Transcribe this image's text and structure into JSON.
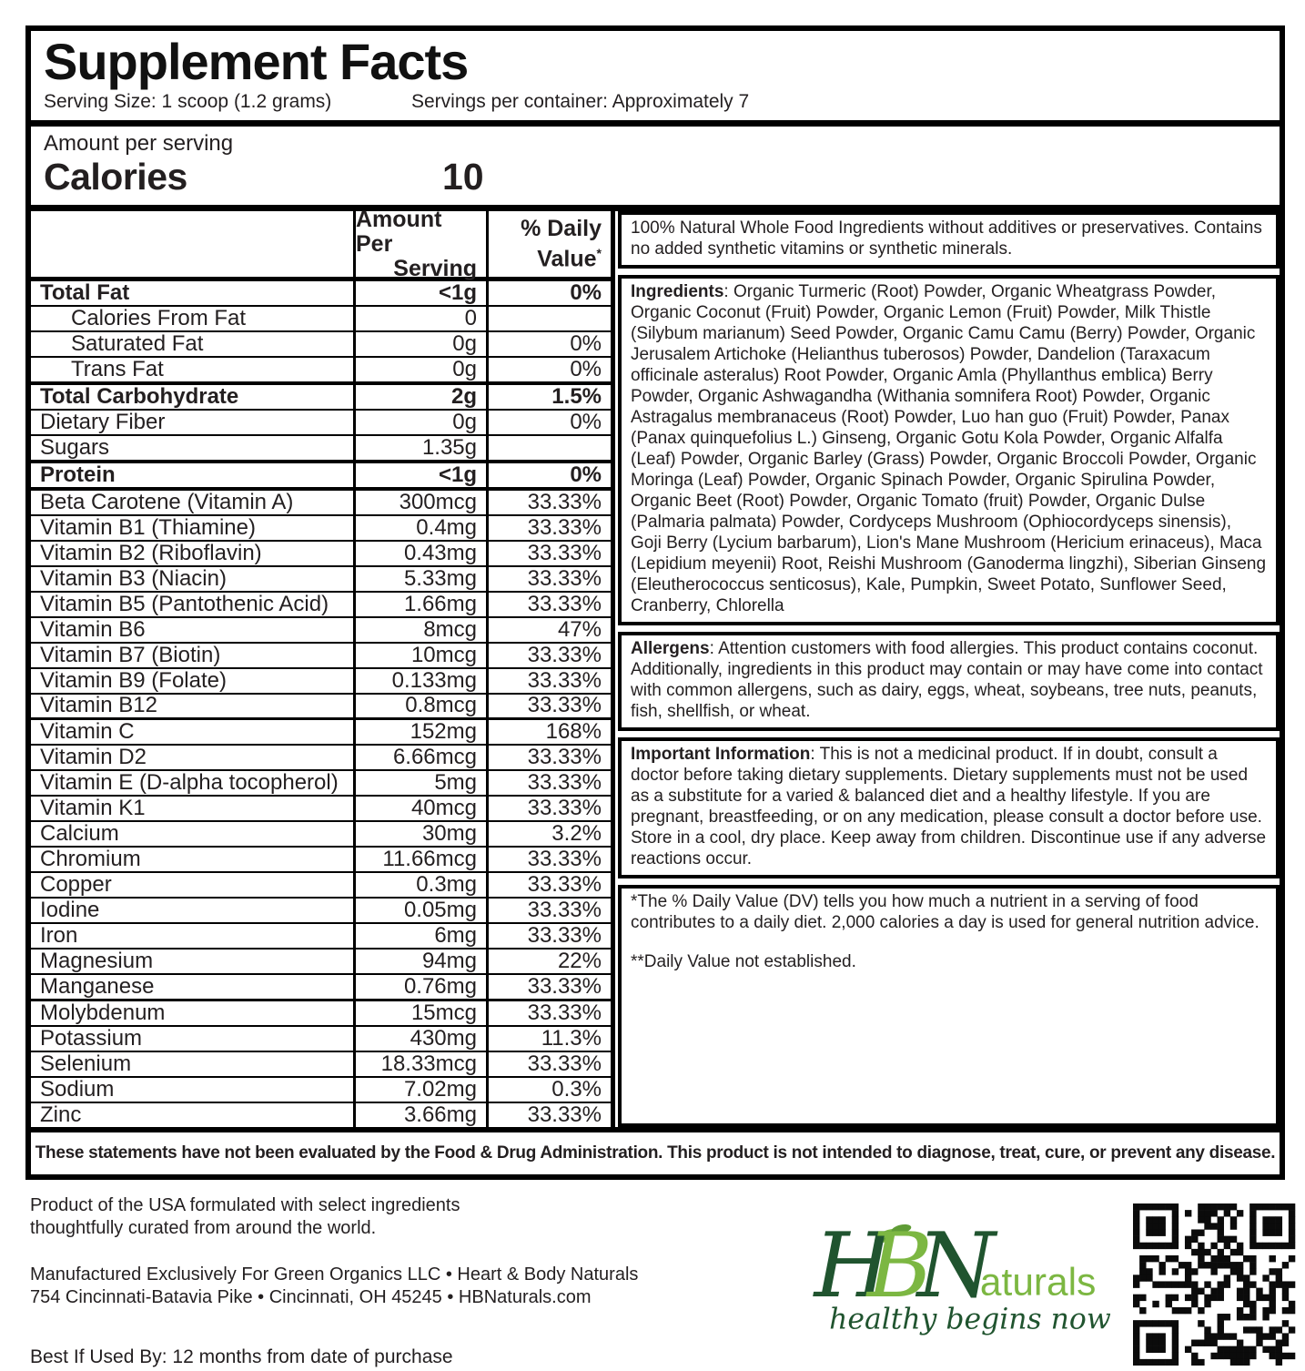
{
  "header": {
    "title": "Supplement Facts",
    "serving_size": "Serving Size: 1 scoop (1.2 grams)",
    "servings_per_container": "Servings per container: Approximately 7",
    "amount_per_serving_label": "Amount per serving",
    "calories_label": "Calories",
    "calories_value": "10"
  },
  "table": {
    "col_amount_line1": "Amount Per",
    "col_amount_line2": "Serving",
    "col_dv_line1": "% Daily",
    "col_dv_line2": "Value",
    "col_dv_sup": "*",
    "rows": [
      {
        "name": "Total Fat",
        "amount": "<1g",
        "dv": "0%",
        "bold": true
      },
      {
        "name": "Calories From Fat",
        "amount": "0",
        "dv": "",
        "indent": true
      },
      {
        "name": "Saturated Fat",
        "amount": "0g",
        "dv": "0%",
        "indent": true
      },
      {
        "name": "Trans Fat",
        "amount": "0g",
        "dv": "0%",
        "indent": true
      },
      {
        "name": "Total Carbohydrate",
        "amount": "2g",
        "dv": "1.5%",
        "bold": true,
        "sep": "thick"
      },
      {
        "name": "Dietary Fiber",
        "amount": "0g",
        "dv": "0%"
      },
      {
        "name": "Sugars",
        "amount": "1.35g",
        "dv": ""
      },
      {
        "name": "Protein",
        "amount": "<1g",
        "dv": "0%",
        "bold": true,
        "sep": "thick"
      },
      {
        "name": "Beta Carotene (Vitamin A)",
        "amount": "300mcg",
        "dv": "33.33%",
        "sep": "thick"
      },
      {
        "name": "Vitamin B1 (Thiamine)",
        "amount": "0.4mg",
        "dv": "33.33%"
      },
      {
        "name": "Vitamin B2 (Riboflavin)",
        "amount": "0.43mg",
        "dv": "33.33%"
      },
      {
        "name": "Vitamin B3 (Niacin)",
        "amount": "5.33mg",
        "dv": "33.33%"
      },
      {
        "name": "Vitamin B5 (Pantothenic Acid)",
        "amount": "1.66mg",
        "dv": "33.33%"
      },
      {
        "name": "Vitamin B6",
        "amount": "8mcg",
        "dv": "47%"
      },
      {
        "name": "Vitamin B7 (Biotin)",
        "amount": "10mcg",
        "dv": "33.33%"
      },
      {
        "name": "Vitamin B9 (Folate)",
        "amount": "0.133mg",
        "dv": "33.33%"
      },
      {
        "name": "Vitamin B12",
        "amount": "0.8mcg",
        "dv": "33.33%"
      },
      {
        "name": "Vitamin C",
        "amount": "152mg",
        "dv": "168%",
        "sep": "medium"
      },
      {
        "name": "Vitamin D2",
        "amount": "6.66mcg",
        "dv": "33.33%"
      },
      {
        "name": "Vitamin E (D-alpha tocopherol)",
        "amount": "5mg",
        "dv": "33.33%"
      },
      {
        "name": "Vitamin K1",
        "amount": "40mcg",
        "dv": "33.33%"
      },
      {
        "name": "Calcium",
        "amount": "30mg",
        "dv": "3.2%"
      },
      {
        "name": "Chromium",
        "amount": "11.66mcg",
        "dv": "33.33%"
      },
      {
        "name": "Copper",
        "amount": "0.3mg",
        "dv": "33.33%"
      },
      {
        "name": "Iodine",
        "amount": "0.05mg",
        "dv": "33.33%"
      },
      {
        "name": "Iron",
        "amount": "6mg",
        "dv": "33.33%"
      },
      {
        "name": "Magnesium",
        "amount": "94mg",
        "dv": "22%"
      },
      {
        "name": "Manganese",
        "amount": "0.76mg",
        "dv": "33.33%"
      },
      {
        "name": "Molybdenum",
        "amount": "15mcg",
        "dv": "33.33%",
        "sep": "medium"
      },
      {
        "name": "Potassium",
        "amount": "430mg",
        "dv": "11.3%"
      },
      {
        "name": "Selenium",
        "amount": "18.33mcg",
        "dv": "33.33%"
      },
      {
        "name": "Sodium",
        "amount": "7.02mg",
        "dv": "0.3%"
      },
      {
        "name": "Zinc",
        "amount": "3.66mg",
        "dv": "33.33%"
      }
    ]
  },
  "info": {
    "natural": "100% Natural Whole Food Ingredients without additives or preservatives. Contains no added synthetic vitamins or synthetic minerals.",
    "ingredients_label": "Ingredients",
    "ingredients_text": ": Organic Turmeric (Root) Powder, Organic Wheatgrass Powder, Organic Coconut (Fruit) Powder, Organic Lemon (Fruit) Powder, Milk Thistle (Silybum marianum) Seed Powder, Organic Camu Camu (Berry) Powder, Organic Jerusalem Artichoke (Helianthus tuberosos) Powder, Dandelion (Taraxacum officinale asteralus) Root Powder, Organic Amla (Phyllanthus emblica) Berry Powder, Organic Ashwagandha (Withania somnifera Root) Powder, Organic Astragalus membranaceus (Root) Powder, Luo han guo (Fruit) Powder, Panax (Panax quinquefolius L.) Ginseng, Organic Gotu Kola Powder, Organic Alfalfa (Leaf) Powder, Organic Barley (Grass) Powder, Organic Broccoli Powder, Organic Moringa (Leaf) Powder, Organic Spinach Powder, Organic Spirulina Powder, Organic Beet (Root) Powder, Organic Tomato (fruit) Powder, Organic Dulse (Palmaria palmata) Powder, Cordyceps Mushroom (Ophiocordyceps sinensis), Goji Berry (Lycium barbarum), Lion's Mane Mushroom (Hericium erinaceus), Maca (Lepidium meyenii) Root, Reishi Mushroom (Ganoderma lingzhi), Siberian Ginseng (Eleutherococcus senticosus), Kale, Pumpkin, Sweet Potato, Sunflower Seed, Cranberry, Chlorella",
    "allergens_label": "Allergens",
    "allergens_text": ": Attention customers with food allergies. This product contains coconut. Additionally, ingredients in this product may contain or may have come into contact with common allergens, such as dairy, eggs, wheat, soybeans, tree nuts, peanuts, fish, shellfish, or wheat.",
    "important_label": "Important Information",
    "important_text": ": This is not a medicinal product. If in doubt, consult a doctor before taking dietary supplements. Dietary supplements must not be used as a substitute for a varied & balanced diet and a healthy lifestyle. If you are pregnant, breastfeeding, or on any medication, please consult a doctor before use. Store in a cool, dry place. Keep away from children. Discontinue use if any adverse reactions occur.",
    "dv_note1": "*The % Daily Value (DV) tells you how much a nutrient in a serving of food contributes to a daily diet. 2,000 calories a day is used for general nutrition advice.",
    "dv_note2": "**Daily Value not established."
  },
  "disclaimer": "These statements have not been evaluated by the Food & Drug Administration. This product is not intended to diagnose, treat, cure, or prevent any disease.",
  "footer": {
    "product_line1": "Product of the USA formulated with select ingredients",
    "product_line2": "thoughtfully curated from around the world.",
    "mfg_line1": "Manufactured Exclusively For Green Organics LLC • Heart & Body Naturals",
    "mfg_line2": "754 Cincinnati-Batavia Pike • Cincinnati, OH 45245 • HBNaturals.com",
    "best_by": "Best If Used By: 12 months from date of purchase",
    "logo": {
      "h": "H",
      "b": "B",
      "n": "N",
      "rest": "aturals",
      "tagline": "healthy begins now",
      "dark_green": "#20542f",
      "light_green": "#7cb742"
    }
  }
}
